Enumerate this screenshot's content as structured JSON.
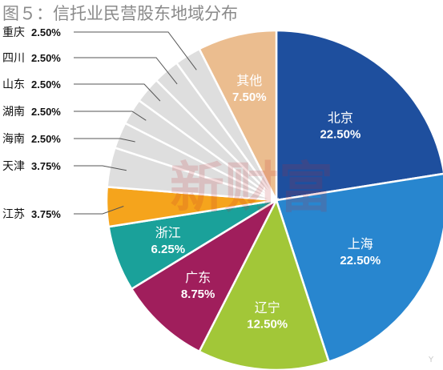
{
  "chart_data": {
    "type": "pie",
    "title": "图５：信托业民营股东地域分布",
    "slices": [
      {
        "label": "北京",
        "value": 22.5,
        "display": "22.50%",
        "color": "#1e4f9e",
        "label_style": "inside"
      },
      {
        "label": "上海",
        "value": 22.5,
        "display": "22.50%",
        "color": "#2886cf",
        "label_style": "inside"
      },
      {
        "label": "辽宁",
        "value": 12.5,
        "display": "12.50%",
        "color": "#a2c738",
        "label_style": "inside"
      },
      {
        "label": "广东",
        "value": 8.75,
        "display": "8.75%",
        "color": "#a01e5c",
        "label_style": "inside"
      },
      {
        "label": "浙江",
        "value": 6.25,
        "display": "6.25%",
        "color": "#1aa19a",
        "label_style": "inside"
      },
      {
        "label": "江苏",
        "value": 3.75,
        "display": "3.75%",
        "color": "#f5a41c",
        "label_style": "outside"
      },
      {
        "label": "天津",
        "value": 3.75,
        "display": "3.75%",
        "color": "#dedede",
        "label_style": "outside"
      },
      {
        "label": "海南",
        "value": 2.5,
        "display": "2.50%",
        "color": "#dedede",
        "label_style": "outside"
      },
      {
        "label": "湖南",
        "value": 2.5,
        "display": "2.50%",
        "color": "#dedede",
        "label_style": "outside"
      },
      {
        "label": "山东",
        "value": 2.5,
        "display": "2.50%",
        "color": "#dedede",
        "label_style": "outside"
      },
      {
        "label": "四川",
        "value": 2.5,
        "display": "2.50%",
        "color": "#dedede",
        "label_style": "outside"
      },
      {
        "label": "重庆",
        "value": 2.5,
        "display": "2.50%",
        "color": "#dedede",
        "label_style": "outside"
      },
      {
        "label": "其他",
        "value": 7.5,
        "display": "7.50%",
        "color": "#ebbd8f",
        "label_style": "inside"
      }
    ],
    "legend": "none"
  },
  "watermark": "新财富",
  "corner_mark": "Y"
}
